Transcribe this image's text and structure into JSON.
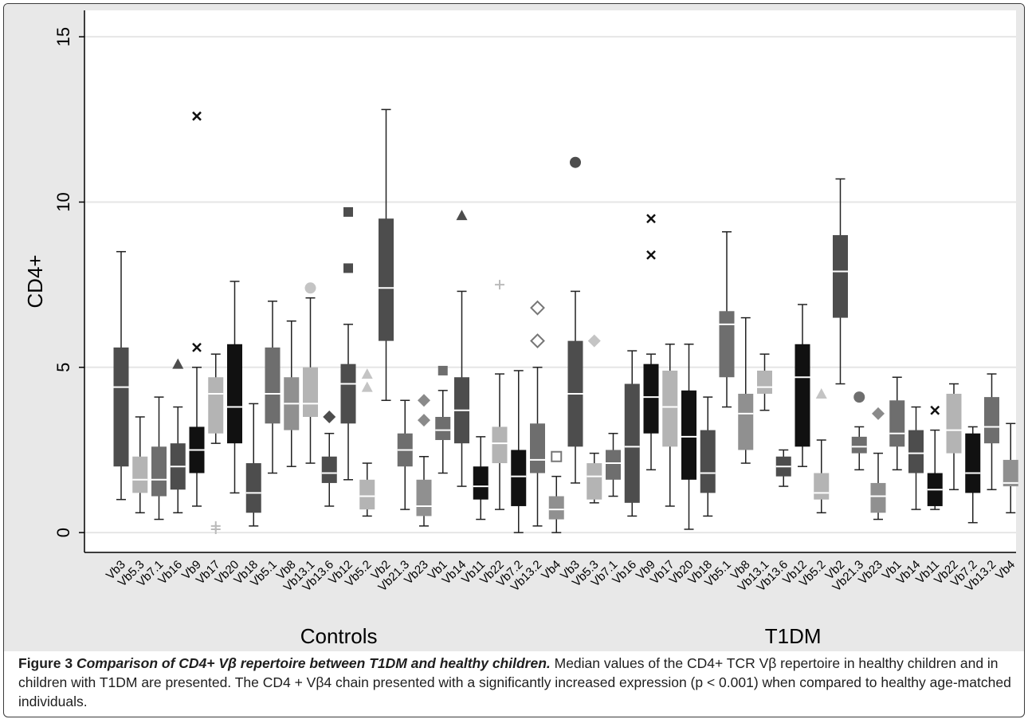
{
  "chart_data": {
    "type": "box",
    "ylabel": "CD4+",
    "ylim": [
      -0.6,
      15.8
    ],
    "yticks": [
      "0",
      "5",
      "10",
      "15"
    ],
    "ytick_values": [
      0,
      5,
      10,
      15
    ],
    "grid": true,
    "groups": [
      "Controls",
      "T1DM"
    ],
    "shade_palette": {
      "dark": "#4d4d4d",
      "mid": "#6e6e6e",
      "light": "#b4b4b4",
      "black": "#111111",
      "medium": "#909090"
    },
    "series": [
      {
        "group": "Controls",
        "label": "Vb3",
        "shade": "dark",
        "whislo": 1.0,
        "q1": 2.0,
        "med": 4.4,
        "q3": 5.6,
        "whishi": 8.5,
        "outliers": []
      },
      {
        "group": "Controls",
        "label": "Vb5.3",
        "shade": "light",
        "whislo": 0.6,
        "q1": 1.2,
        "med": 1.6,
        "q3": 2.3,
        "whishi": 3.5,
        "outliers": []
      },
      {
        "group": "Controls",
        "label": "Vb7.1",
        "shade": "mid",
        "whislo": 0.4,
        "q1": 1.1,
        "med": 1.6,
        "q3": 2.6,
        "whishi": 4.1,
        "outliers": []
      },
      {
        "group": "Controls",
        "label": "Vb16",
        "shade": "dark",
        "whislo": 0.6,
        "q1": 1.3,
        "med": 2.0,
        "q3": 2.7,
        "whishi": 3.8,
        "outliers": [
          {
            "y": 5.1,
            "marker": "triangle"
          }
        ]
      },
      {
        "group": "Controls",
        "label": "Vb9",
        "shade": "black",
        "whislo": 0.8,
        "q1": 1.8,
        "med": 2.5,
        "q3": 3.2,
        "whishi": 5.0,
        "outliers": [
          {
            "y": 5.6,
            "marker": "x"
          },
          {
            "y": 12.6,
            "marker": "x"
          }
        ]
      },
      {
        "group": "Controls",
        "label": "Vb17",
        "shade": "light",
        "whislo": 2.7,
        "q1": 3.0,
        "med": 4.2,
        "q3": 4.7,
        "whishi": 5.4,
        "outliers": [
          {
            "y": 0.1,
            "marker": "plus"
          },
          {
            "y": 0.2,
            "marker": "plus"
          }
        ]
      },
      {
        "group": "Controls",
        "label": "Vb20",
        "shade": "black",
        "whislo": 1.2,
        "q1": 2.7,
        "med": 3.8,
        "q3": 5.7,
        "whishi": 7.6,
        "outliers": []
      },
      {
        "group": "Controls",
        "label": "Vb18",
        "shade": "dark",
        "whislo": 0.2,
        "q1": 0.6,
        "med": 1.2,
        "q3": 2.1,
        "whishi": 3.9,
        "outliers": []
      },
      {
        "group": "Controls",
        "label": "Vb5.1",
        "shade": "mid",
        "whislo": 1.8,
        "q1": 3.3,
        "med": 4.2,
        "q3": 5.6,
        "whishi": 7.0,
        "outliers": []
      },
      {
        "group": "Controls",
        "label": "Vb8",
        "shade": "medium",
        "whislo": 2.0,
        "q1": 3.1,
        "med": 3.9,
        "q3": 4.7,
        "whishi": 6.4,
        "outliers": []
      },
      {
        "group": "Controls",
        "label": "Vb13.1",
        "shade": "light",
        "whislo": 2.1,
        "q1": 3.5,
        "med": 3.9,
        "q3": 5.0,
        "whishi": 7.1,
        "outliers": [
          {
            "y": 7.4,
            "marker": "circle"
          }
        ]
      },
      {
        "group": "Controls",
        "label": "Vb13.6",
        "shade": "dark",
        "whislo": 0.8,
        "q1": 1.5,
        "med": 1.8,
        "q3": 2.3,
        "whishi": 3.0,
        "outliers": [
          {
            "y": 3.5,
            "marker": "diamond"
          }
        ]
      },
      {
        "group": "Controls",
        "label": "Vb12",
        "shade": "dark",
        "whislo": 1.6,
        "q1": 3.3,
        "med": 4.5,
        "q3": 5.1,
        "whishi": 6.3,
        "outliers": [
          {
            "y": 8.0,
            "marker": "square"
          },
          {
            "y": 9.7,
            "marker": "square"
          }
        ]
      },
      {
        "group": "Controls",
        "label": "Vb5.2",
        "shade": "light",
        "whislo": 0.5,
        "q1": 0.7,
        "med": 1.1,
        "q3": 1.6,
        "whishi": 2.1,
        "outliers": [
          {
            "y": 4.4,
            "marker": "triangle"
          },
          {
            "y": 4.8,
            "marker": "triangle"
          }
        ]
      },
      {
        "group": "Controls",
        "label": "Vb2",
        "shade": "dark",
        "whislo": 4.0,
        "q1": 5.8,
        "med": 7.4,
        "q3": 9.5,
        "whishi": 12.8,
        "outliers": []
      },
      {
        "group": "Controls",
        "label": "Vb21.3",
        "shade": "mid",
        "whislo": 0.7,
        "q1": 2.0,
        "med": 2.5,
        "q3": 3.0,
        "whishi": 4.0,
        "outliers": []
      },
      {
        "group": "Controls",
        "label": "Vb23",
        "shade": "medium",
        "whislo": 0.2,
        "q1": 0.5,
        "med": 0.8,
        "q3": 1.6,
        "whishi": 2.3,
        "outliers": [
          {
            "y": 3.4,
            "marker": "diamond"
          },
          {
            "y": 4.0,
            "marker": "diamond"
          }
        ]
      },
      {
        "group": "Controls",
        "label": "Vb1",
        "shade": "mid",
        "whislo": 1.8,
        "q1": 2.8,
        "med": 3.1,
        "q3": 3.5,
        "whishi": 4.3,
        "outliers": [
          {
            "y": 4.9,
            "marker": "square"
          }
        ]
      },
      {
        "group": "Controls",
        "label": "Vb14",
        "shade": "dark",
        "whislo": 1.4,
        "q1": 2.7,
        "med": 3.7,
        "q3": 4.7,
        "whishi": 7.3,
        "outliers": [
          {
            "y": 9.6,
            "marker": "triangle"
          }
        ]
      },
      {
        "group": "Controls",
        "label": "Vb11",
        "shade": "black",
        "whislo": 0.4,
        "q1": 1.0,
        "med": 1.4,
        "q3": 2.0,
        "whishi": 2.9,
        "outliers": []
      },
      {
        "group": "Controls",
        "label": "Vb22",
        "shade": "light",
        "whislo": 0.7,
        "q1": 2.1,
        "med": 2.7,
        "q3": 3.2,
        "whishi": 4.8,
        "outliers": [
          {
            "y": 7.5,
            "marker": "plus"
          }
        ]
      },
      {
        "group": "Controls",
        "label": "Vb7.2",
        "shade": "black",
        "whislo": 0.0,
        "q1": 0.8,
        "med": 1.7,
        "q3": 2.5,
        "whishi": 4.9,
        "outliers": []
      },
      {
        "group": "Controls",
        "label": "Vb13.2",
        "shade": "mid",
        "whislo": 0.2,
        "q1": 1.8,
        "med": 2.2,
        "q3": 3.3,
        "whishi": 5.0,
        "outliers": [
          {
            "y": 5.8,
            "marker": "hollow-diamond"
          },
          {
            "y": 6.8,
            "marker": "hollow-diamond"
          }
        ]
      },
      {
        "group": "Controls",
        "label": "Vb4",
        "shade": "medium",
        "whislo": 0.0,
        "q1": 0.4,
        "med": 0.7,
        "q3": 1.1,
        "whishi": 1.7,
        "outliers": [
          {
            "y": 2.3,
            "marker": "hollow-square"
          }
        ]
      },
      {
        "group": "T1DM",
        "label": "Vb3",
        "shade": "dark",
        "whislo": 1.5,
        "q1": 2.6,
        "med": 4.2,
        "q3": 5.8,
        "whishi": 7.3,
        "outliers": [
          {
            "y": 11.2,
            "marker": "circle"
          }
        ]
      },
      {
        "group": "T1DM",
        "label": "Vb5.3",
        "shade": "light",
        "whislo": 0.9,
        "q1": 1.0,
        "med": 1.7,
        "q3": 2.1,
        "whishi": 2.4,
        "outliers": [
          {
            "y": 5.8,
            "marker": "diamond"
          }
        ]
      },
      {
        "group": "T1DM",
        "label": "Vb7.1",
        "shade": "mid",
        "whislo": 1.1,
        "q1": 1.6,
        "med": 2.1,
        "q3": 2.5,
        "whishi": 3.0,
        "outliers": []
      },
      {
        "group": "T1DM",
        "label": "Vb16",
        "shade": "dark",
        "whislo": 0.5,
        "q1": 0.9,
        "med": 2.6,
        "q3": 4.5,
        "whishi": 5.5,
        "outliers": []
      },
      {
        "group": "T1DM",
        "label": "Vb9",
        "shade": "black",
        "whislo": 1.9,
        "q1": 3.0,
        "med": 4.1,
        "q3": 5.1,
        "whishi": 5.4,
        "outliers": [
          {
            "y": 8.4,
            "marker": "x"
          },
          {
            "y": 9.5,
            "marker": "x"
          }
        ]
      },
      {
        "group": "T1DM",
        "label": "Vb17",
        "shade": "light",
        "whislo": 0.8,
        "q1": 2.6,
        "med": 3.8,
        "q3": 4.9,
        "whishi": 5.7,
        "outliers": []
      },
      {
        "group": "T1DM",
        "label": "Vb20",
        "shade": "black",
        "whislo": 0.1,
        "q1": 1.6,
        "med": 2.9,
        "q3": 4.3,
        "whishi": 5.7,
        "outliers": []
      },
      {
        "group": "T1DM",
        "label": "Vb18",
        "shade": "dark",
        "whislo": 0.5,
        "q1": 1.2,
        "med": 1.8,
        "q3": 3.1,
        "whishi": 4.1,
        "outliers": []
      },
      {
        "group": "T1DM",
        "label": "Vb5.1",
        "shade": "mid",
        "whislo": 3.8,
        "q1": 4.7,
        "med": 6.3,
        "q3": 6.7,
        "whishi": 9.1,
        "outliers": []
      },
      {
        "group": "T1DM",
        "label": "Vb8",
        "shade": "medium",
        "whislo": 2.1,
        "q1": 2.5,
        "med": 3.6,
        "q3": 4.2,
        "whishi": 6.5,
        "outliers": []
      },
      {
        "group": "T1DM",
        "label": "Vb13.1",
        "shade": "light",
        "whislo": 3.7,
        "q1": 4.2,
        "med": 4.4,
        "q3": 4.9,
        "whishi": 5.4,
        "outliers": []
      },
      {
        "group": "T1DM",
        "label": "Vb13.6",
        "shade": "dark",
        "whislo": 1.4,
        "q1": 1.7,
        "med": 2.0,
        "q3": 2.3,
        "whishi": 2.5,
        "outliers": []
      },
      {
        "group": "T1DM",
        "label": "Vb12",
        "shade": "black",
        "whislo": 2.0,
        "q1": 2.6,
        "med": 4.7,
        "q3": 5.7,
        "whishi": 6.9,
        "outliers": []
      },
      {
        "group": "T1DM",
        "label": "Vb5.2",
        "shade": "light",
        "whislo": 0.6,
        "q1": 1.0,
        "med": 1.2,
        "q3": 1.8,
        "whishi": 2.8,
        "outliers": [
          {
            "y": 4.2,
            "marker": "triangle"
          }
        ]
      },
      {
        "group": "T1DM",
        "label": "Vb2",
        "shade": "dark",
        "whislo": 4.5,
        "q1": 6.5,
        "med": 7.9,
        "q3": 9.0,
        "whishi": 10.7,
        "outliers": []
      },
      {
        "group": "T1DM",
        "label": "Vb21.3",
        "shade": "mid",
        "whislo": 1.9,
        "q1": 2.4,
        "med": 2.6,
        "q3": 2.9,
        "whishi": 3.2,
        "outliers": [
          {
            "y": 4.1,
            "marker": "circle"
          }
        ]
      },
      {
        "group": "T1DM",
        "label": "Vb23",
        "shade": "medium",
        "whislo": 0.4,
        "q1": 0.6,
        "med": 1.1,
        "q3": 1.5,
        "whishi": 2.4,
        "outliers": [
          {
            "y": 3.6,
            "marker": "diamond"
          }
        ]
      },
      {
        "group": "T1DM",
        "label": "Vb1",
        "shade": "mid",
        "whislo": 1.9,
        "q1": 2.6,
        "med": 3.0,
        "q3": 4.0,
        "whishi": 4.7,
        "outliers": []
      },
      {
        "group": "T1DM",
        "label": "Vb14",
        "shade": "dark",
        "whislo": 0.7,
        "q1": 1.8,
        "med": 2.4,
        "q3": 3.1,
        "whishi": 3.8,
        "outliers": []
      },
      {
        "group": "T1DM",
        "label": "Vb11",
        "shade": "black",
        "whislo": 0.7,
        "q1": 0.8,
        "med": 1.3,
        "q3": 1.8,
        "whishi": 3.1,
        "outliers": [
          {
            "y": 3.7,
            "marker": "x"
          }
        ]
      },
      {
        "group": "T1DM",
        "label": "Vb22",
        "shade": "light",
        "whislo": 1.3,
        "q1": 2.4,
        "med": 3.1,
        "q3": 4.2,
        "whishi": 4.5,
        "outliers": []
      },
      {
        "group": "T1DM",
        "label": "Vb7.2",
        "shade": "black",
        "whislo": 0.3,
        "q1": 1.2,
        "med": 1.8,
        "q3": 3.0,
        "whishi": 3.2,
        "outliers": []
      },
      {
        "group": "T1DM",
        "label": "Vb13.2",
        "shade": "mid",
        "whislo": 1.3,
        "q1": 2.7,
        "med": 3.2,
        "q3": 4.1,
        "whishi": 4.8,
        "outliers": []
      },
      {
        "group": "T1DM",
        "label": "Vb4",
        "shade": "medium",
        "whislo": 0.6,
        "q1": 1.4,
        "med": 1.5,
        "q3": 2.2,
        "whishi": 3.3,
        "outliers": []
      }
    ]
  },
  "caption": {
    "figure_label": "Figure 3",
    "title": "Comparison of CD4+ Vβ repertoire between T1DM and healthy children.",
    "text": "Median values of the CD4+ TCR Vβ repertoire in healthy children and in children with T1DM are presented. The CD4 + Vβ4 chain presented with a significantly increased expression (p < 0.001) when compared to healthy age-matched individuals."
  }
}
